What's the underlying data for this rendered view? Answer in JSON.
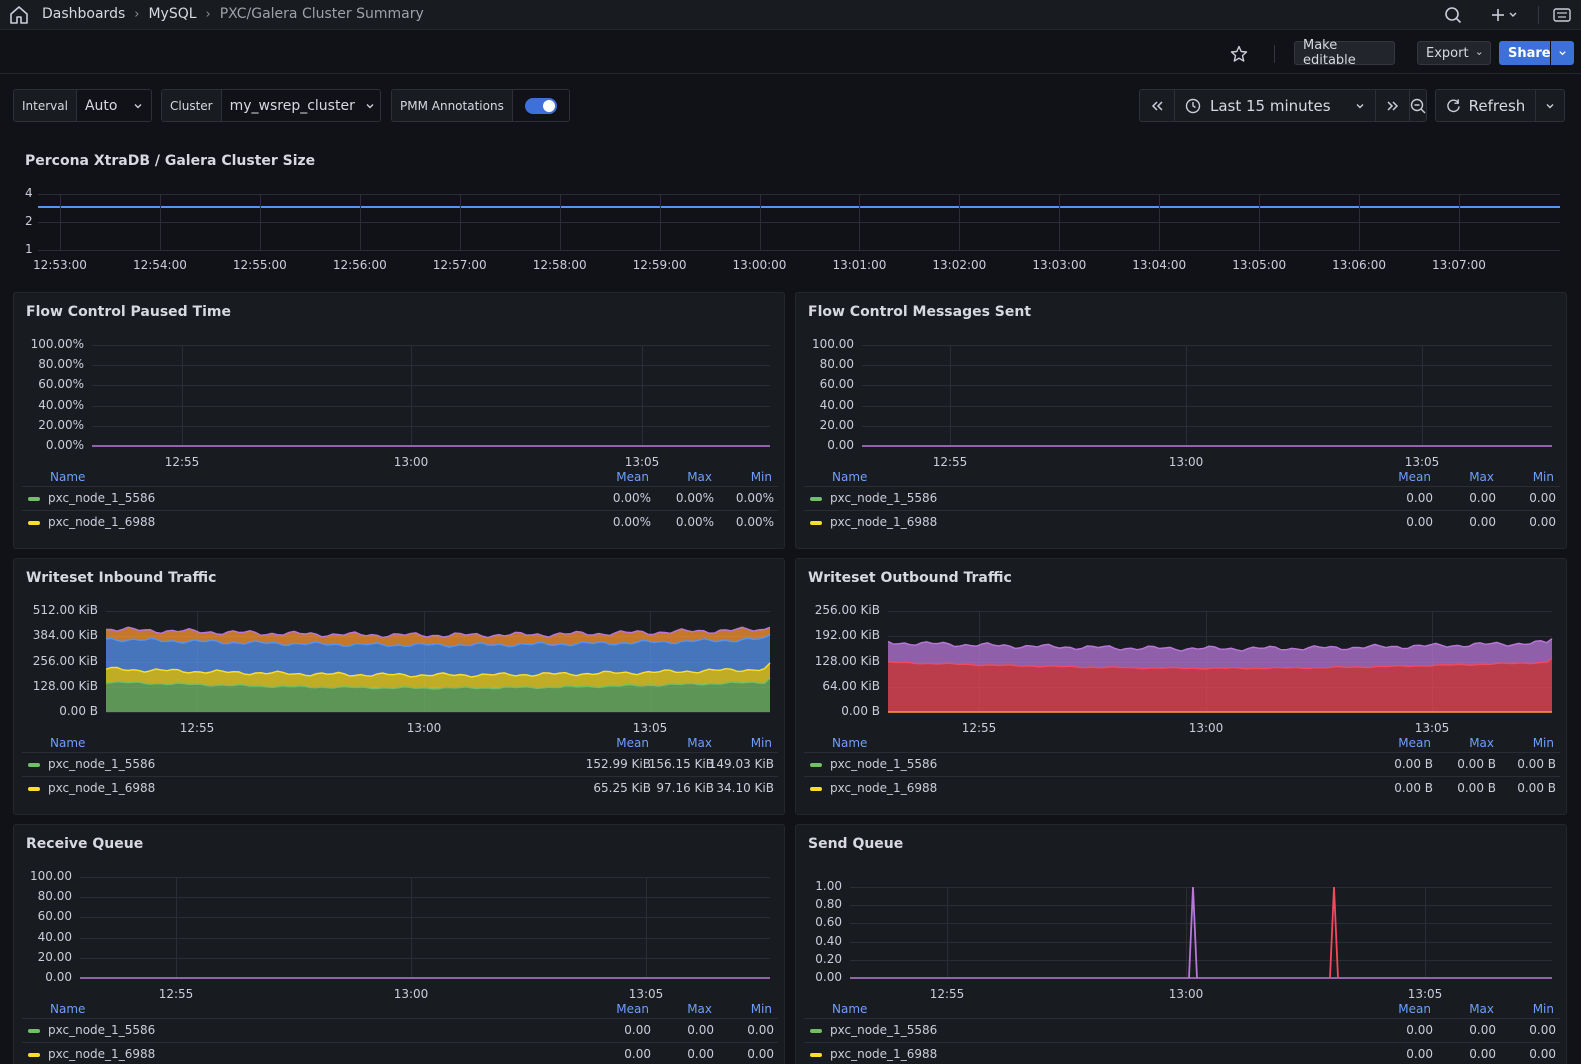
{
  "breadcrumbs": [
    {
      "label": "Dashboards"
    },
    {
      "label": "MySQL"
    },
    {
      "label": "PXC/Galera Cluster Summary"
    }
  ],
  "toolbar": {
    "make_editable": "Make editable",
    "export": "Export",
    "share": "Share"
  },
  "variables": {
    "interval": {
      "label": "Interval",
      "value": "Auto"
    },
    "cluster": {
      "label": "Cluster",
      "value": "my_wsrep_cluster"
    },
    "annotations": {
      "label": "PMM Annotations",
      "enabled": true
    }
  },
  "time_controls": {
    "range": "Last 15 minutes",
    "refresh": "Refresh"
  },
  "colors": {
    "green": "#73bf69",
    "yellow": "#fade2a",
    "blue": "#5794f2",
    "orange": "#ff9830",
    "purple": "#b877d9",
    "red": "#f2495c",
    "accent": "#3d71d9"
  },
  "cluster_size": {
    "title": "Percona XtraDB / Galera Cluster Size",
    "y_ticks": [
      "4",
      "2",
      "1"
    ],
    "x_ticks": [
      "12:53:00",
      "12:54:00",
      "12:55:00",
      "12:56:00",
      "12:57:00",
      "12:58:00",
      "12:59:00",
      "13:00:00",
      "13:01:00",
      "13:02:00",
      "13:03:00",
      "13:04:00",
      "13:05:00",
      "13:06:00",
      "13:07:00"
    ],
    "value": 3
  },
  "legend_headers": {
    "name": "Name",
    "mean": "Mean",
    "max": "Max",
    "min": "Min"
  },
  "panels": [
    {
      "key": "fc_paused",
      "title": "Flow Control Paused Time",
      "y_ticks": [
        "100.00%",
        "80.00%",
        "60.00%",
        "40.00%",
        "20.00%",
        "0.00%"
      ],
      "x_ticks": [
        "12:55",
        "13:00",
        "13:05"
      ],
      "legend": [
        {
          "name": "pxc_node_1_5586",
          "color": "#73bf69",
          "mean": "0.00%",
          "max": "0.00%",
          "min": "0.00%"
        },
        {
          "name": "pxc_node_1_6988",
          "color": "#fade2a",
          "mean": "0.00%",
          "max": "0.00%",
          "min": "0.00%"
        }
      ]
    },
    {
      "key": "fc_sent",
      "title": "Flow Control Messages Sent",
      "y_ticks": [
        "100.00",
        "80.00",
        "60.00",
        "40.00",
        "20.00",
        "0.00"
      ],
      "x_ticks": [
        "12:55",
        "13:00",
        "13:05"
      ],
      "legend": [
        {
          "name": "pxc_node_1_5586",
          "color": "#73bf69",
          "mean": "0.00",
          "max": "0.00",
          "min": "0.00"
        },
        {
          "name": "pxc_node_1_6988",
          "color": "#fade2a",
          "mean": "0.00",
          "max": "0.00",
          "min": "0.00"
        }
      ]
    },
    {
      "key": "inbound",
      "title": "Writeset Inbound Traffic",
      "y_ticks": [
        "512.00 KiB",
        "384.00 KiB",
        "256.00 KiB",
        "128.00 KiB",
        "0.00 B"
      ],
      "x_ticks": [
        "12:55",
        "13:00",
        "13:05"
      ],
      "legend": [
        {
          "name": "pxc_node_1_5586",
          "color": "#73bf69",
          "mean": "152.99 KiB",
          "max": "156.15 KiB",
          "min": "149.03 KiB"
        },
        {
          "name": "pxc_node_1_6988",
          "color": "#fade2a",
          "mean": "65.25 KiB",
          "max": "97.16 KiB",
          "min": "34.10 KiB"
        }
      ]
    },
    {
      "key": "outbound",
      "title": "Writeset Outbound Traffic",
      "y_ticks": [
        "256.00 KiB",
        "192.00 KiB",
        "128.00 KiB",
        "64.00 KiB",
        "0.00 B"
      ],
      "x_ticks": [
        "12:55",
        "13:00",
        "13:05"
      ],
      "legend": [
        {
          "name": "pxc_node_1_5586",
          "color": "#73bf69",
          "mean": "0.00 B",
          "max": "0.00 B",
          "min": "0.00 B"
        },
        {
          "name": "pxc_node_1_6988",
          "color": "#fade2a",
          "mean": "0.00 B",
          "max": "0.00 B",
          "min": "0.00 B"
        }
      ]
    },
    {
      "key": "recv_queue",
      "title": "Receive Queue",
      "y_ticks": [
        "100.00",
        "80.00",
        "60.00",
        "40.00",
        "20.00",
        "0.00"
      ],
      "x_ticks": [
        "12:55",
        "13:00",
        "13:05"
      ],
      "legend": [
        {
          "name": "pxc_node_1_5586",
          "color": "#73bf69",
          "mean": "0.00",
          "max": "0.00",
          "min": "0.00"
        },
        {
          "name": "pxc_node_1_6988",
          "color": "#fade2a",
          "mean": "0.00",
          "max": "0.00",
          "min": "0.00"
        }
      ]
    },
    {
      "key": "send_queue",
      "title": "Send Queue",
      "y_ticks": [
        "1.00",
        "0.80",
        "0.60",
        "0.40",
        "0.20",
        "0.00"
      ],
      "x_ticks": [
        "12:55",
        "13:00",
        "13:05"
      ],
      "legend": [
        {
          "name": "pxc_node_1_5586",
          "color": "#73bf69",
          "mean": "0.00",
          "max": "0.00",
          "min": "0.00"
        },
        {
          "name": "pxc_node_1_6988",
          "color": "#fade2a",
          "mean": "0.00",
          "max": "0.00",
          "min": "0.00"
        }
      ]
    }
  ]
}
